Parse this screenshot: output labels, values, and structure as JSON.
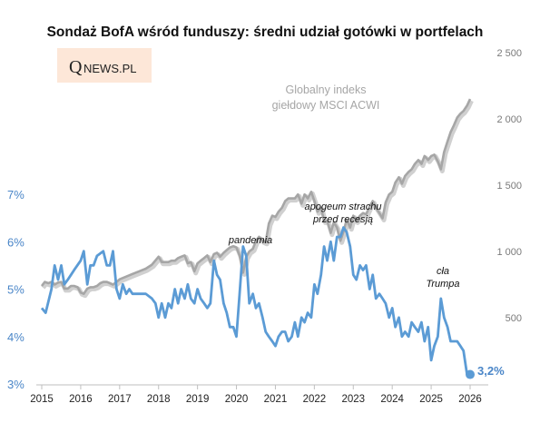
{
  "title": "Sondaż BofA wśród funduszy: średni udział gotówki w portfelach",
  "logo": {
    "main": "Q",
    "text": "NEWS.PL",
    "background": "#fde7d8"
  },
  "index_label_lines": [
    "Globalny indeks",
    "giełdowy MSCI ACWI"
  ],
  "annotations": [
    {
      "id": "pandemia",
      "lines": [
        "pandemia"
      ]
    },
    {
      "id": "recesja",
      "lines": [
        "apogeum strachu",
        "przed recesją"
      ]
    },
    {
      "id": "trump",
      "lines": [
        "cła",
        "Trumpa"
      ]
    }
  ],
  "end_label": "3,2%",
  "colors": {
    "cash": "#5b9bd5",
    "index": "#a6a6a6",
    "index_shadow": "#d0d0d0",
    "axis": "#bfbfbf"
  },
  "chart_data": {
    "type": "line",
    "title": "Sondaż BofA wśród funduszy: średni udział gotówki w portfelach",
    "x_ticks": [
      "2015",
      "2016",
      "2017",
      "2018",
      "2019",
      "2020",
      "2021",
      "2022",
      "2023",
      "2024",
      "2025",
      "2026"
    ],
    "y_left": {
      "ticks": [
        "3%",
        "4%",
        "5%",
        "6%",
        "7%"
      ],
      "ylim": [
        3,
        7
      ]
    },
    "y_right": {
      "ticks": [
        "500",
        "1 000",
        "1 500",
        "2 000",
        "2 500"
      ],
      "ylim": [
        0,
        2500
      ]
    },
    "grid": false,
    "series": [
      {
        "axis": "left",
        "points": [
          [
            2015.0,
            4.6
          ],
          [
            2015.1,
            4.5
          ],
          [
            2015.25,
            5.0
          ],
          [
            2015.33,
            5.5
          ],
          [
            2015.42,
            5.2
          ],
          [
            2015.5,
            5.5
          ],
          [
            2015.58,
            5.1
          ],
          [
            2015.67,
            5.2
          ],
          [
            2015.75,
            5.3
          ],
          [
            2015.83,
            5.4
          ],
          [
            2016.0,
            5.6
          ],
          [
            2016.08,
            5.8
          ],
          [
            2016.17,
            5.1
          ],
          [
            2016.25,
            5.5
          ],
          [
            2016.33,
            5.5
          ],
          [
            2016.42,
            5.7
          ],
          [
            2016.58,
            5.8
          ],
          [
            2016.67,
            5.5
          ],
          [
            2016.75,
            5.5
          ],
          [
            2016.83,
            5.8
          ],
          [
            2016.92,
            5.0
          ],
          [
            2017.0,
            4.8
          ],
          [
            2017.08,
            5.1
          ],
          [
            2017.17,
            4.9
          ],
          [
            2017.25,
            5.0
          ],
          [
            2017.33,
            4.9
          ],
          [
            2017.5,
            4.9
          ],
          [
            2017.67,
            4.9
          ],
          [
            2017.83,
            4.8
          ],
          [
            2017.92,
            4.7
          ],
          [
            2018.0,
            4.4
          ],
          [
            2018.08,
            4.7
          ],
          [
            2018.17,
            4.4
          ],
          [
            2018.25,
            4.7
          ],
          [
            2018.33,
            4.6
          ],
          [
            2018.42,
            5.0
          ],
          [
            2018.5,
            4.7
          ],
          [
            2018.58,
            5.0
          ],
          [
            2018.67,
            4.8
          ],
          [
            2018.75,
            5.1
          ],
          [
            2018.83,
            4.8
          ],
          [
            2018.92,
            4.7
          ],
          [
            2019.0,
            5.0
          ],
          [
            2019.08,
            4.8
          ],
          [
            2019.17,
            4.7
          ],
          [
            2019.25,
            4.6
          ],
          [
            2019.33,
            4.7
          ],
          [
            2019.42,
            5.6
          ],
          [
            2019.5,
            5.3
          ],
          [
            2019.58,
            5.2
          ],
          [
            2019.67,
            4.7
          ],
          [
            2019.75,
            4.5
          ],
          [
            2019.83,
            4.2
          ],
          [
            2019.92,
            4.2
          ],
          [
            2020.0,
            4.0
          ],
          [
            2020.08,
            4.9
          ],
          [
            2020.17,
            5.9
          ],
          [
            2020.25,
            5.7
          ],
          [
            2020.33,
            4.7
          ],
          [
            2020.42,
            4.9
          ],
          [
            2020.5,
            4.6
          ],
          [
            2020.58,
            4.7
          ],
          [
            2020.67,
            4.4
          ],
          [
            2020.75,
            4.1
          ],
          [
            2020.83,
            4.0
          ],
          [
            2020.92,
            3.9
          ],
          [
            2021.0,
            3.8
          ],
          [
            2021.08,
            4.0
          ],
          [
            2021.17,
            4.1
          ],
          [
            2021.25,
            4.1
          ],
          [
            2021.33,
            3.9
          ],
          [
            2021.42,
            4.0
          ],
          [
            2021.5,
            4.3
          ],
          [
            2021.58,
            4.0
          ],
          [
            2021.67,
            4.4
          ],
          [
            2021.75,
            4.3
          ],
          [
            2021.83,
            4.5
          ],
          [
            2021.92,
            4.4
          ],
          [
            2022.0,
            5.1
          ],
          [
            2022.08,
            4.9
          ],
          [
            2022.17,
            5.3
          ],
          [
            2022.25,
            5.9
          ],
          [
            2022.33,
            5.6
          ],
          [
            2022.42,
            6.0
          ],
          [
            2022.5,
            5.6
          ],
          [
            2022.58,
            6.1
          ],
          [
            2022.67,
            6.1
          ],
          [
            2022.75,
            6.3
          ],
          [
            2022.83,
            6.2
          ],
          [
            2022.92,
            5.9
          ],
          [
            2023.0,
            5.3
          ],
          [
            2023.08,
            5.2
          ],
          [
            2023.17,
            5.5
          ],
          [
            2023.25,
            5.4
          ],
          [
            2023.33,
            5.5
          ],
          [
            2023.42,
            5.0
          ],
          [
            2023.5,
            5.3
          ],
          [
            2023.58,
            4.8
          ],
          [
            2023.67,
            4.9
          ],
          [
            2023.75,
            4.8
          ],
          [
            2023.83,
            4.7
          ],
          [
            2023.92,
            4.4
          ],
          [
            2024.0,
            4.6
          ],
          [
            2024.08,
            4.2
          ],
          [
            2024.17,
            4.4
          ],
          [
            2024.25,
            4.0
          ],
          [
            2024.33,
            4.1
          ],
          [
            2024.42,
            4.0
          ],
          [
            2024.5,
            4.3
          ],
          [
            2024.58,
            4.2
          ],
          [
            2024.67,
            4.1
          ],
          [
            2024.75,
            4.3
          ],
          [
            2024.83,
            3.9
          ],
          [
            2024.92,
            4.2
          ],
          [
            2025.0,
            3.5
          ],
          [
            2025.08,
            3.8
          ],
          [
            2025.17,
            4.0
          ],
          [
            2025.25,
            4.8
          ],
          [
            2025.33,
            4.4
          ],
          [
            2025.42,
            4.2
          ],
          [
            2025.5,
            3.9
          ],
          [
            2025.67,
            3.9
          ],
          [
            2025.75,
            3.8
          ],
          [
            2025.83,
            3.7
          ],
          [
            2025.92,
            3.2
          ],
          [
            2026.0,
            3.2
          ]
        ]
      },
      {
        "axis": "right",
        "points": [
          [
            2015.0,
            740
          ],
          [
            2015.08,
            770
          ],
          [
            2015.17,
            760
          ],
          [
            2015.25,
            770
          ],
          [
            2015.33,
            750
          ],
          [
            2015.42,
            765
          ],
          [
            2015.5,
            770
          ],
          [
            2015.58,
            720
          ],
          [
            2015.67,
            720
          ],
          [
            2015.75,
            740
          ],
          [
            2015.83,
            740
          ],
          [
            2015.92,
            730
          ],
          [
            2016.0,
            690
          ],
          [
            2016.08,
            680
          ],
          [
            2016.17,
            720
          ],
          [
            2016.25,
            730
          ],
          [
            2016.33,
            730
          ],
          [
            2016.42,
            740
          ],
          [
            2016.5,
            760
          ],
          [
            2016.58,
            770
          ],
          [
            2016.67,
            770
          ],
          [
            2016.75,
            760
          ],
          [
            2016.83,
            750
          ],
          [
            2016.92,
            770
          ],
          [
            2017.0,
            790
          ],
          [
            2017.17,
            810
          ],
          [
            2017.33,
            830
          ],
          [
            2017.5,
            850
          ],
          [
            2017.67,
            870
          ],
          [
            2017.83,
            900
          ],
          [
            2018.0,
            960
          ],
          [
            2018.08,
            920
          ],
          [
            2018.17,
            920
          ],
          [
            2018.25,
            920
          ],
          [
            2018.33,
            930
          ],
          [
            2018.42,
            930
          ],
          [
            2018.5,
            950
          ],
          [
            2018.58,
            960
          ],
          [
            2018.67,
            970
          ],
          [
            2018.75,
            910
          ],
          [
            2018.83,
            920
          ],
          [
            2018.92,
            850
          ],
          [
            2019.0,
            910
          ],
          [
            2019.08,
            930
          ],
          [
            2019.17,
            950
          ],
          [
            2019.25,
            970
          ],
          [
            2019.33,
            920
          ],
          [
            2019.42,
            980
          ],
          [
            2019.5,
            990
          ],
          [
            2019.58,
            960
          ],
          [
            2019.67,
            990
          ],
          [
            2019.75,
            1010
          ],
          [
            2019.83,
            1030
          ],
          [
            2019.92,
            1040
          ],
          [
            2020.0,
            1030
          ],
          [
            2020.08,
            970
          ],
          [
            2020.17,
            840
          ],
          [
            2020.25,
            960
          ],
          [
            2020.33,
            1000
          ],
          [
            2020.42,
            1020
          ],
          [
            2020.5,
            1080
          ],
          [
            2020.58,
            1110
          ],
          [
            2020.67,
            1080
          ],
          [
            2020.75,
            1070
          ],
          [
            2020.83,
            1210
          ],
          [
            2020.92,
            1270
          ],
          [
            2021.0,
            1260
          ],
          [
            2021.08,
            1300
          ],
          [
            2021.17,
            1330
          ],
          [
            2021.25,
            1380
          ],
          [
            2021.33,
            1400
          ],
          [
            2021.42,
            1400
          ],
          [
            2021.5,
            1400
          ],
          [
            2021.58,
            1430
          ],
          [
            2021.67,
            1360
          ],
          [
            2021.75,
            1430
          ],
          [
            2021.83,
            1400
          ],
          [
            2021.92,
            1450
          ],
          [
            2022.0,
            1380
          ],
          [
            2022.08,
            1300
          ],
          [
            2022.17,
            1330
          ],
          [
            2022.25,
            1230
          ],
          [
            2022.33,
            1230
          ],
          [
            2022.42,
            1140
          ],
          [
            2022.5,
            1220
          ],
          [
            2022.58,
            1180
          ],
          [
            2022.67,
            1080
          ],
          [
            2022.75,
            1150
          ],
          [
            2022.83,
            1240
          ],
          [
            2022.92,
            1180
          ],
          [
            2023.0,
            1270
          ],
          [
            2023.08,
            1230
          ],
          [
            2023.17,
            1270
          ],
          [
            2023.25,
            1290
          ],
          [
            2023.33,
            1280
          ],
          [
            2023.42,
            1340
          ],
          [
            2023.5,
            1380
          ],
          [
            2023.58,
            1330
          ],
          [
            2023.67,
            1290
          ],
          [
            2023.75,
            1250
          ],
          [
            2023.83,
            1370
          ],
          [
            2023.92,
            1430
          ],
          [
            2024.0,
            1450
          ],
          [
            2024.08,
            1520
          ],
          [
            2024.17,
            1560
          ],
          [
            2024.25,
            1510
          ],
          [
            2024.33,
            1570
          ],
          [
            2024.42,
            1600
          ],
          [
            2024.5,
            1620
          ],
          [
            2024.58,
            1660
          ],
          [
            2024.67,
            1690
          ],
          [
            2024.75,
            1660
          ],
          [
            2024.83,
            1720
          ],
          [
            2024.92,
            1690
          ],
          [
            2025.0,
            1720
          ],
          [
            2025.08,
            1730
          ],
          [
            2025.17,
            1680
          ],
          [
            2025.25,
            1620
          ],
          [
            2025.33,
            1750
          ],
          [
            2025.42,
            1830
          ],
          [
            2025.5,
            1900
          ],
          [
            2025.58,
            1950
          ],
          [
            2025.67,
            2010
          ],
          [
            2025.75,
            2040
          ],
          [
            2025.83,
            2060
          ],
          [
            2025.92,
            2100
          ],
          [
            2026.0,
            2150
          ]
        ]
      }
    ]
  }
}
